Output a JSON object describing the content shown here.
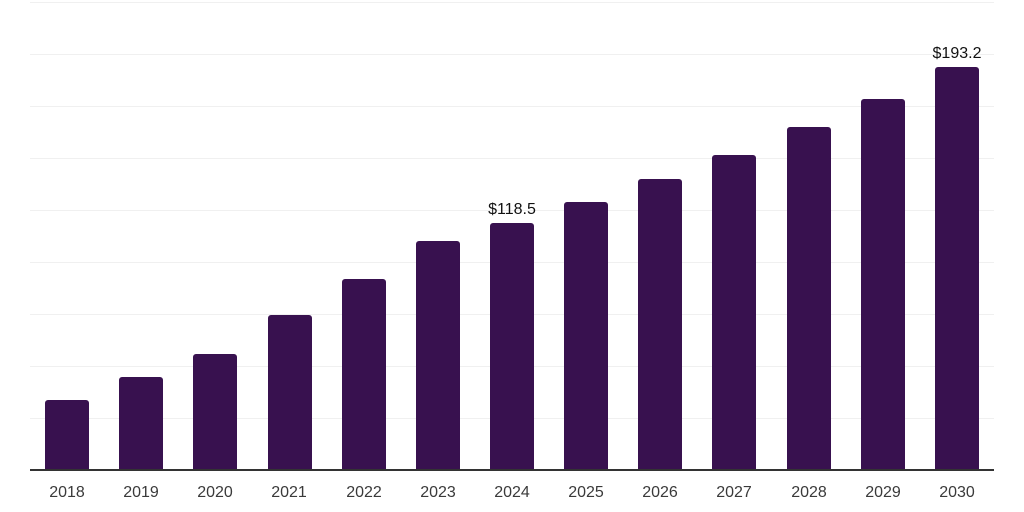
{
  "chart_data": {
    "type": "bar",
    "title": "",
    "xlabel": "",
    "ylabel": "",
    "categories": [
      "2018",
      "2019",
      "2020",
      "2021",
      "2022",
      "2023",
      "2024",
      "2025",
      "2026",
      "2027",
      "2028",
      "2029",
      "2030"
    ],
    "values": [
      33.1,
      44.2,
      55.2,
      73.9,
      91.2,
      109.4,
      118.5,
      128.6,
      139.2,
      151.2,
      164.2,
      178.1,
      193.2
    ],
    "ylim": [
      0,
      225
    ],
    "gridline_step": 25,
    "grid": true,
    "legend": "none",
    "y_axis_labels_visible": false,
    "data_labels": [
      {
        "category": "2024",
        "text": "$118.5"
      },
      {
        "category": "2030",
        "text": "$193.2"
      }
    ]
  },
  "colors": {
    "bar": "#38114F",
    "gridline": "#f0f0f0",
    "axis_line": "#333333",
    "tick_label": "#3a3a3a",
    "data_label": "#111111",
    "background": "#ffffff"
  }
}
